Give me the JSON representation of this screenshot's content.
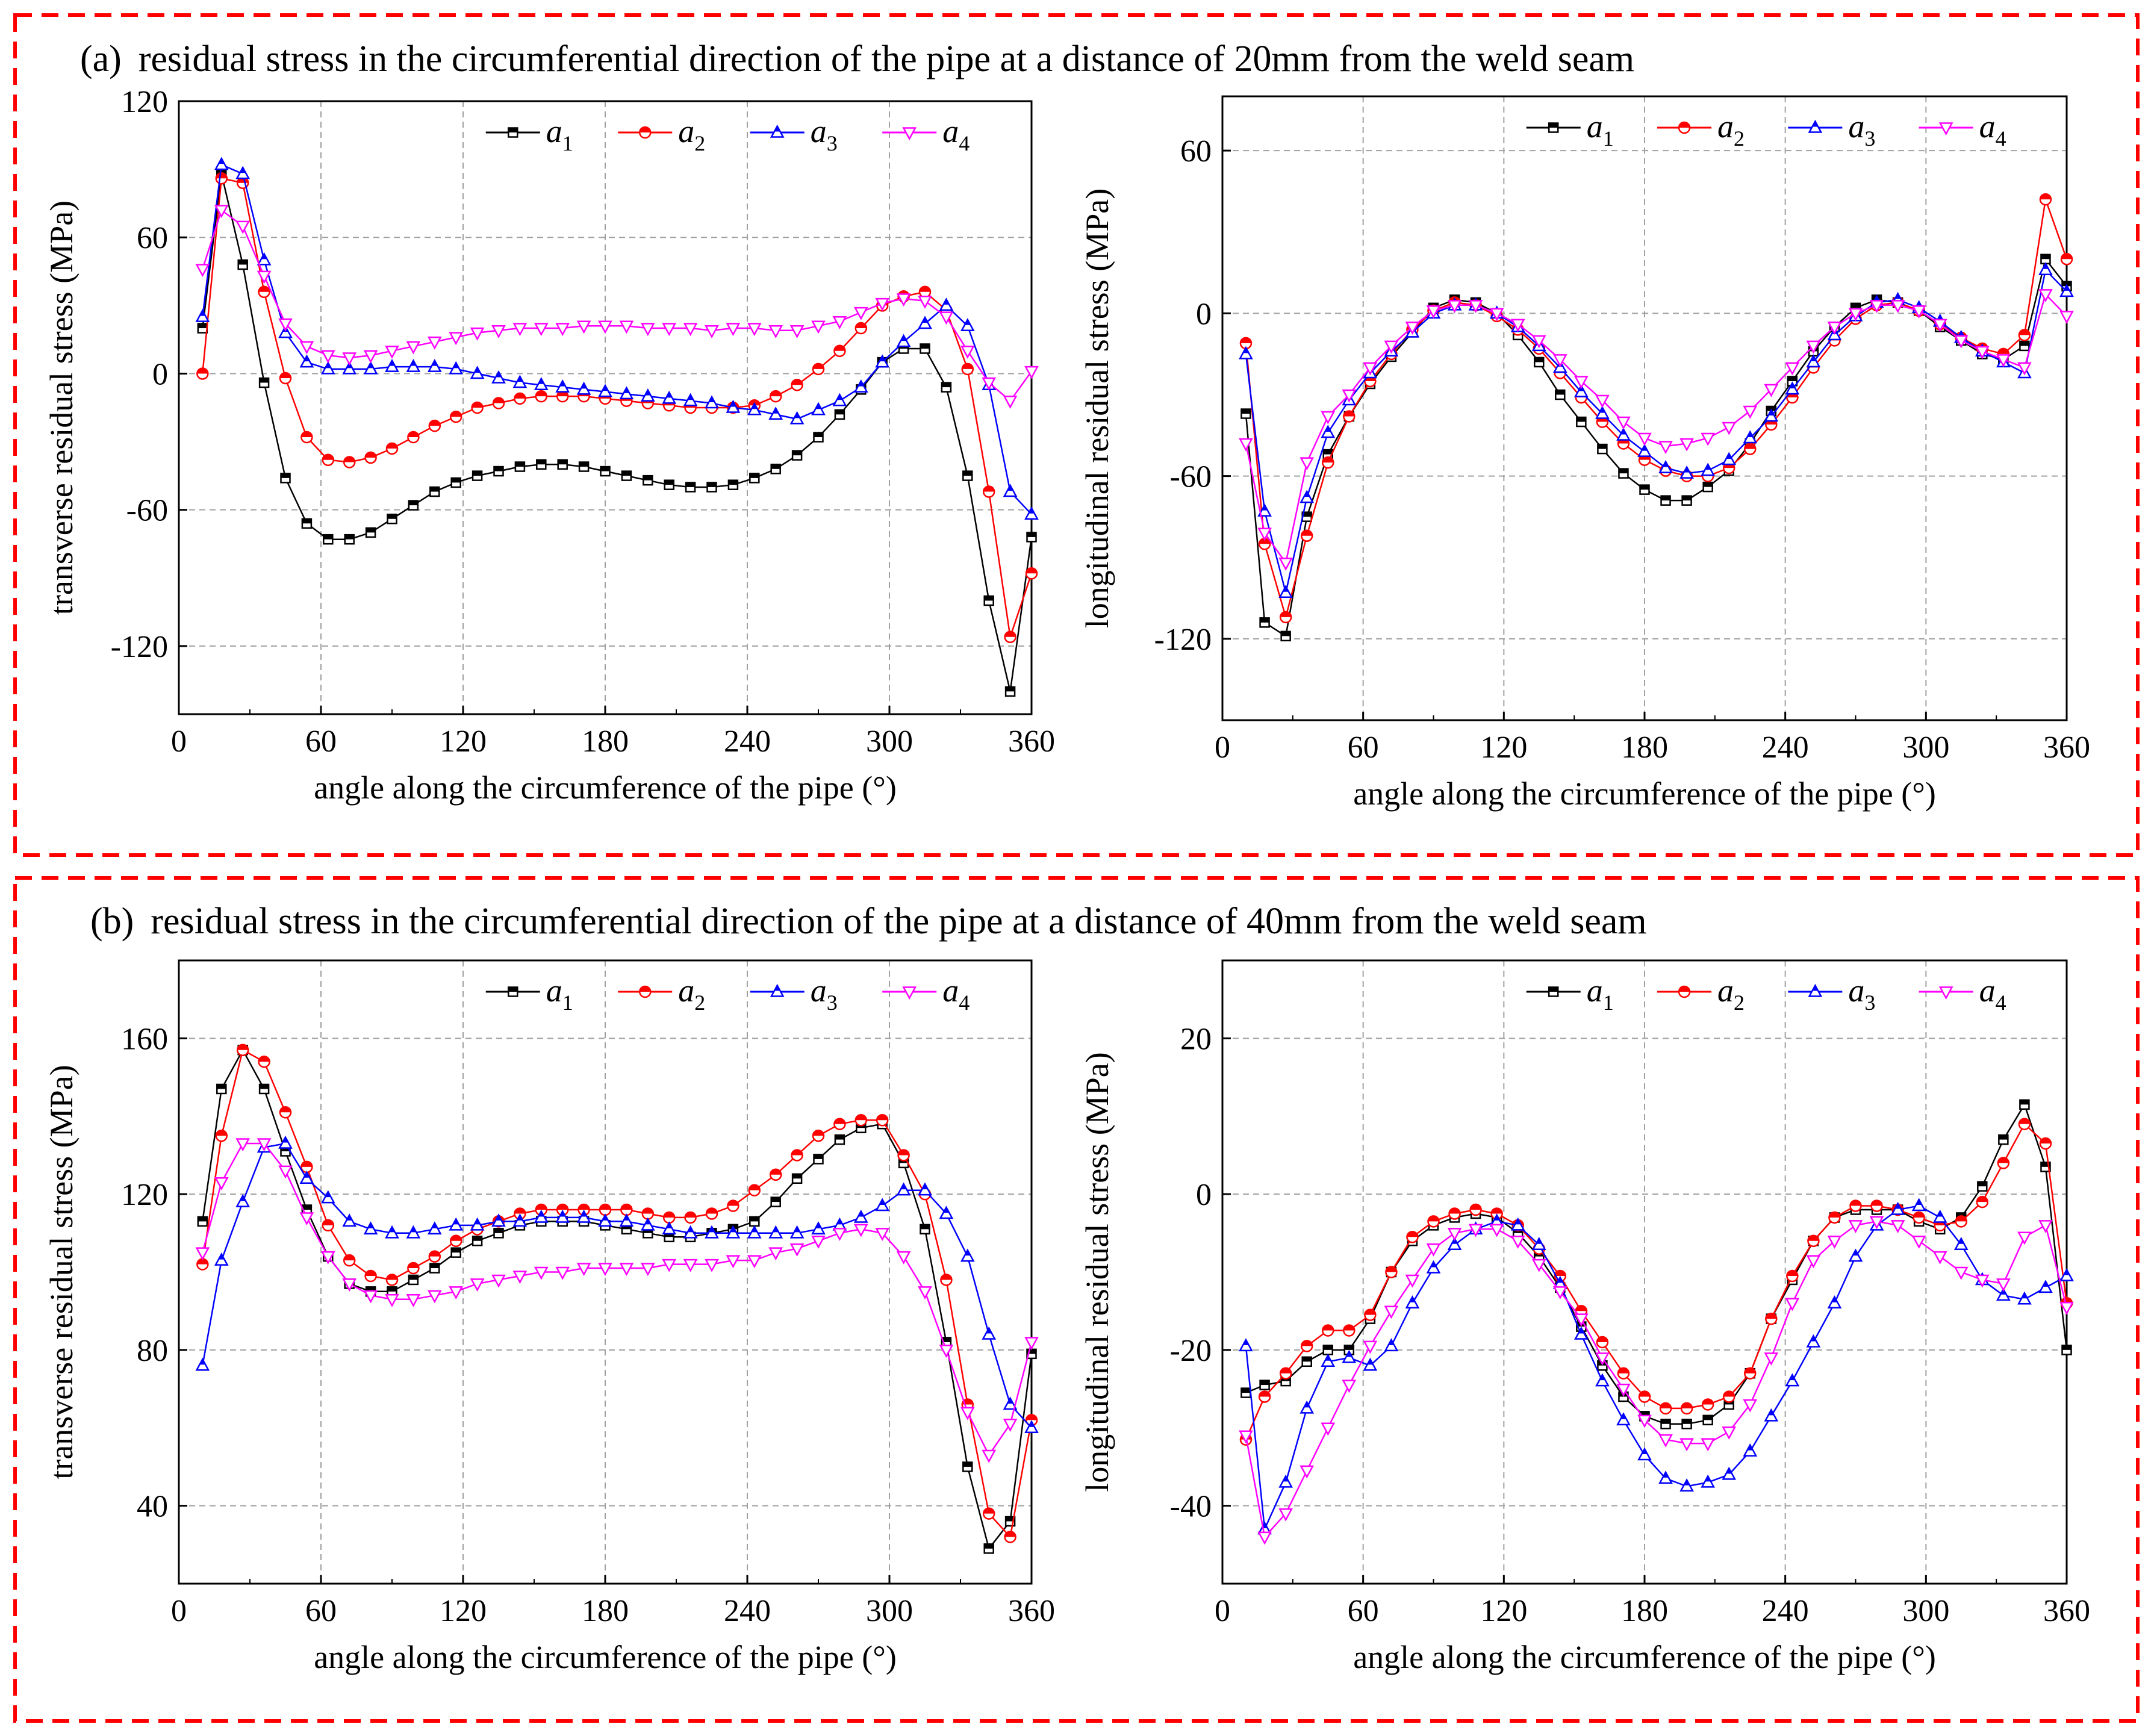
{
  "panels": [
    {
      "label": "(a)",
      "caption": "residual stress in the circumferential direction of the pipe at a distance of 20mm from the weld seam"
    },
    {
      "label": "(b)",
      "caption": "residual stress in the circumferential direction of the pipe at a distance of 40mm from the weld seam"
    }
  ],
  "series_styles": [
    {
      "name": "a1",
      "base": "a",
      "sub": "1",
      "color": "#000000",
      "marker": "square"
    },
    {
      "name": "a2",
      "base": "a",
      "sub": "2",
      "color": "#ff0000",
      "marker": "circle"
    },
    {
      "name": "a3",
      "base": "a",
      "sub": "3",
      "color": "#0000ff",
      "marker": "triangle-up"
    },
    {
      "name": "a4",
      "base": "a",
      "sub": "4",
      "color": "#ff00ff",
      "marker": "triangle-down"
    }
  ],
  "chart_data": [
    {
      "id": "a-transverse",
      "panel": "(a)",
      "type": "line",
      "xlabel": "angle along the circumference of the pipe (°)",
      "ylabel": "transverse residual stress (MPa)",
      "xlim": [
        0,
        360
      ],
      "ylim": [
        -150,
        120
      ],
      "xticks": [
        0,
        60,
        120,
        180,
        240,
        300,
        360
      ],
      "yticks": [
        -120,
        -60,
        0,
        60,
        120
      ],
      "grid": true,
      "legend": "top, horizontal",
      "x": [
        10,
        18,
        27,
        36,
        45,
        54,
        63,
        72,
        81,
        90,
        99,
        108,
        117,
        126,
        135,
        144,
        153,
        162,
        171,
        180,
        189,
        198,
        207,
        216,
        225,
        234,
        243,
        252,
        261,
        270,
        279,
        288,
        297,
        306,
        315,
        324,
        333,
        342,
        351,
        360
      ],
      "series": [
        {
          "name": "a1",
          "values": [
            20,
            88,
            48,
            -4,
            -46,
            -66,
            -73,
            -73,
            -70,
            -64,
            -58,
            -52,
            -48,
            -45,
            -43,
            -41,
            -40,
            -40,
            -41,
            -43,
            -45,
            -47,
            -49,
            -50,
            -50,
            -49,
            -46,
            -42,
            -36,
            -28,
            -18,
            -7,
            5,
            11,
            11,
            -6,
            -45,
            -100,
            -140,
            -72
          ]
        },
        {
          "name": "a2",
          "values": [
            0,
            86,
            84,
            36,
            -2,
            -28,
            -38,
            -39,
            -37,
            -33,
            -28,
            -23,
            -19,
            -15,
            -13,
            -11,
            -10,
            -10,
            -10,
            -11,
            -12,
            -13,
            -14,
            -15,
            -15,
            -15,
            -14,
            -10,
            -5,
            2,
            10,
            20,
            30,
            34,
            36,
            28,
            2,
            -52,
            -116,
            -88
          ]
        },
        {
          "name": "a3",
          "values": [
            25,
            92,
            88,
            50,
            18,
            5,
            2,
            2,
            2,
            3,
            3,
            3,
            2,
            0,
            -2,
            -4,
            -5,
            -6,
            -7,
            -8,
            -9,
            -10,
            -11,
            -12,
            -13,
            -15,
            -16,
            -18,
            -20,
            -16,
            -12,
            -6,
            5,
            14,
            22,
            30,
            21,
            -5,
            -52,
            -62
          ]
        },
        {
          "name": "a4",
          "values": [
            46,
            72,
            65,
            43,
            22,
            12,
            8,
            7,
            8,
            10,
            12,
            14,
            16,
            18,
            19,
            20,
            20,
            20,
            21,
            21,
            21,
            20,
            20,
            20,
            19,
            20,
            20,
            19,
            19,
            21,
            23,
            27,
            31,
            33,
            32,
            25,
            10,
            -4,
            -12,
            1
          ]
        }
      ]
    },
    {
      "id": "a-longitudinal",
      "panel": "(a)",
      "type": "line",
      "xlabel": "angle along the circumference of the pipe (°)",
      "ylabel": "longitudinal residual stress (MPa)",
      "xlim": [
        0,
        360
      ],
      "ylim": [
        -150,
        80
      ],
      "xticks": [
        0,
        60,
        120,
        180,
        240,
        300,
        360
      ],
      "yticks": [
        -120,
        -60,
        0,
        60
      ],
      "grid": true,
      "legend": "top, horizontal",
      "x": [
        10,
        18,
        27,
        36,
        45,
        54,
        63,
        72,
        81,
        90,
        99,
        108,
        117,
        126,
        135,
        144,
        153,
        162,
        171,
        180,
        189,
        198,
        207,
        216,
        225,
        234,
        243,
        252,
        261,
        270,
        279,
        288,
        297,
        306,
        315,
        324,
        333,
        342,
        351,
        360
      ],
      "series": [
        {
          "name": "a1",
          "values": [
            -37,
            -114,
            -119,
            -75,
            -52,
            -38,
            -26,
            -16,
            -7,
            2,
            5,
            4,
            0,
            -8,
            -18,
            -30,
            -40,
            -50,
            -59,
            -65,
            -69,
            -69,
            -64,
            -58,
            -48,
            -36,
            -25,
            -14,
            -5,
            2,
            5,
            4,
            1,
            -5,
            -10,
            -15,
            -17,
            -12,
            20,
            10
          ]
        },
        {
          "name": "a2",
          "values": [
            -11,
            -85,
            -112,
            -82,
            -55,
            -38,
            -25,
            -15,
            -6,
            1,
            4,
            3,
            -1,
            -6,
            -13,
            -22,
            -31,
            -40,
            -48,
            -54,
            -58,
            -60,
            -60,
            -57,
            -50,
            -41,
            -31,
            -20,
            -10,
            -2,
            3,
            4,
            1,
            -4,
            -9,
            -13,
            -15,
            -8,
            42,
            20
          ]
        },
        {
          "name": "a3",
          "values": [
            -15,
            -73,
            -103,
            -68,
            -44,
            -32,
            -22,
            -14,
            -7,
            0,
            3,
            3,
            0,
            -5,
            -12,
            -20,
            -29,
            -37,
            -45,
            -51,
            -57,
            -59,
            -58,
            -54,
            -46,
            -38,
            -28,
            -18,
            -8,
            -1,
            4,
            5,
            2,
            -3,
            -9,
            -14,
            -18,
            -22,
            16,
            8
          ]
        },
        {
          "name": "a4",
          "values": [
            -48,
            -81,
            -92,
            -55,
            -38,
            -30,
            -20,
            -12,
            -5,
            1,
            3,
            3,
            0,
            -4,
            -10,
            -17,
            -25,
            -32,
            -40,
            -46,
            -49,
            -48,
            -46,
            -42,
            -36,
            -28,
            -20,
            -12,
            -5,
            0,
            3,
            3,
            1,
            -4,
            -10,
            -14,
            -17,
            -20,
            7,
            -1
          ]
        }
      ]
    },
    {
      "id": "b-transverse",
      "panel": "(b)",
      "type": "line",
      "xlabel": "angle along the circumference of the pipe (°)",
      "ylabel": "transverse residual stress (MPa)",
      "xlim": [
        0,
        360
      ],
      "ylim": [
        20,
        180
      ],
      "xticks": [
        0,
        60,
        120,
        180,
        240,
        300,
        360
      ],
      "yticks": [
        40,
        80,
        120,
        160
      ],
      "grid": true,
      "legend": "top, horizontal",
      "x": [
        10,
        18,
        27,
        36,
        45,
        54,
        63,
        72,
        81,
        90,
        99,
        108,
        117,
        126,
        135,
        144,
        153,
        162,
        171,
        180,
        189,
        198,
        207,
        216,
        225,
        234,
        243,
        252,
        261,
        270,
        279,
        288,
        297,
        306,
        315,
        324,
        333,
        342,
        351,
        360
      ],
      "series": [
        {
          "name": "a1",
          "values": [
            113,
            147,
            157,
            147,
            131,
            116,
            104,
            97,
            95,
            95,
            98,
            101,
            105,
            108,
            110,
            112,
            113,
            113,
            113,
            112,
            111,
            110,
            109,
            109,
            110,
            111,
            113,
            118,
            124,
            129,
            134,
            137,
            138,
            128,
            111,
            82,
            50,
            29,
            36,
            79
          ]
        },
        {
          "name": "a2",
          "values": [
            102,
            135,
            157,
            154,
            141,
            127,
            112,
            103,
            99,
            98,
            101,
            104,
            108,
            111,
            113,
            115,
            116,
            116,
            116,
            116,
            116,
            115,
            114,
            114,
            115,
            117,
            121,
            125,
            130,
            135,
            138,
            139,
            139,
            130,
            120,
            98,
            66,
            38,
            32,
            62
          ]
        },
        {
          "name": "a3",
          "values": [
            76,
            103,
            118,
            132,
            133,
            124,
            119,
            113,
            111,
            110,
            110,
            111,
            112,
            112,
            113,
            113,
            114,
            114,
            114,
            113,
            113,
            112,
            111,
            110,
            110,
            110,
            110,
            110,
            110,
            111,
            112,
            114,
            117,
            121,
            121,
            115,
            104,
            84,
            66,
            60
          ]
        },
        {
          "name": "a4",
          "values": [
            105,
            123,
            133,
            133,
            126,
            114,
            104,
            97,
            94,
            93,
            93,
            94,
            95,
            97,
            98,
            99,
            100,
            100,
            101,
            101,
            101,
            101,
            102,
            102,
            102,
            103,
            103,
            105,
            106,
            108,
            110,
            111,
            110,
            104,
            95,
            80,
            64,
            53,
            61,
            82
          ]
        }
      ]
    },
    {
      "id": "b-longitudinal",
      "panel": "(b)",
      "type": "line",
      "xlabel": "angle along the circumference of the pipe (°)",
      "ylabel": "longitudinal residual stress (MPa)",
      "xlim": [
        0,
        360
      ],
      "ylim": [
        -50,
        30
      ],
      "xticks": [
        0,
        60,
        120,
        180,
        240,
        300,
        360
      ],
      "yticks": [
        -40,
        -20,
        0,
        20
      ],
      "grid": true,
      "legend": "top, horizontal",
      "x": [
        10,
        18,
        27,
        36,
        45,
        54,
        63,
        72,
        81,
        90,
        99,
        108,
        117,
        126,
        135,
        144,
        153,
        162,
        171,
        180,
        189,
        198,
        207,
        216,
        225,
        234,
        243,
        252,
        261,
        270,
        279,
        288,
        297,
        306,
        315,
        324,
        333,
        342,
        351,
        360
      ],
      "series": [
        {
          "name": "a1",
          "values": [
            -25.5,
            -24.5,
            -24,
            -21.5,
            -20,
            -20,
            -16,
            -10,
            -6,
            -4,
            -3,
            -2.5,
            -3,
            -5,
            -8,
            -12,
            -17,
            -22,
            -26,
            -28.5,
            -29.5,
            -29.5,
            -29,
            -27,
            -23,
            -16,
            -11,
            -6,
            -3,
            -2,
            -2,
            -2,
            -3.5,
            -4.5,
            -3,
            1,
            7,
            11.5,
            3.5,
            -20
          ]
        },
        {
          "name": "a2",
          "values": [
            -31.5,
            -26,
            -23,
            -19.5,
            -17.5,
            -17.5,
            -15.5,
            -10,
            -5.5,
            -3.5,
            -2.5,
            -2,
            -2.5,
            -4,
            -7,
            -10.5,
            -15,
            -19,
            -23,
            -26,
            -27.5,
            -27.5,
            -27,
            -26,
            -23,
            -16,
            -10.5,
            -6,
            -3,
            -1.5,
            -1.5,
            -2,
            -3,
            -4,
            -3.5,
            -1,
            4,
            9,
            6.5,
            -14
          ]
        },
        {
          "name": "a3",
          "values": [
            -19.5,
            -43,
            -37,
            -27.5,
            -21.5,
            -21,
            -22,
            -19.5,
            -14,
            -9.5,
            -6.5,
            -4.5,
            -3.5,
            -4,
            -6.5,
            -11.5,
            -18,
            -24,
            -29,
            -33.5,
            -36.5,
            -37.5,
            -37,
            -36,
            -33,
            -28.5,
            -24,
            -19,
            -14,
            -8,
            -4,
            -2,
            -1.5,
            -3,
            -6.5,
            -11,
            -13,
            -13.5,
            -12,
            -10.5
          ]
        },
        {
          "name": "a4",
          "values": [
            -31,
            -44,
            -41,
            -35.5,
            -30,
            -24.5,
            -19.5,
            -15,
            -11,
            -7,
            -5,
            -4.5,
            -4.5,
            -6,
            -9,
            -12.5,
            -16,
            -21,
            -25,
            -29,
            -31.5,
            -32,
            -32,
            -30.5,
            -27,
            -21,
            -14,
            -8.5,
            -6,
            -4,
            -3.5,
            -4,
            -6,
            -8,
            -10,
            -11,
            -11.5,
            -5.5,
            -4,
            -14.5
          ]
        }
      ]
    }
  ]
}
